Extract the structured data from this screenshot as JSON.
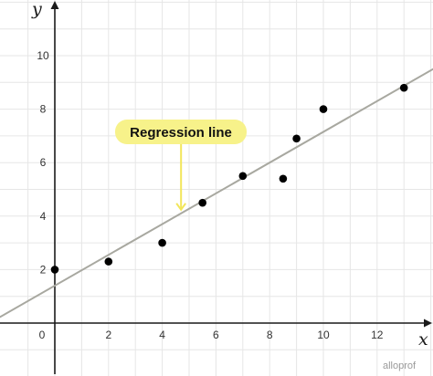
{
  "chart_data": {
    "type": "scatter",
    "title": "",
    "xlabel": "x",
    "ylabel": "y",
    "xlim": [
      -2,
      14
    ],
    "ylim": [
      -0.3,
      11.8
    ],
    "x_ticks": [
      0,
      2,
      4,
      6,
      8,
      10,
      12
    ],
    "y_ticks": [
      2,
      4,
      6,
      8,
      10
    ],
    "grid": true,
    "points": [
      {
        "x": 0,
        "y": 2
      },
      {
        "x": 2,
        "y": 2.3
      },
      {
        "x": 4,
        "y": 3
      },
      {
        "x": 5.5,
        "y": 4.5
      },
      {
        "x": 7,
        "y": 5.5
      },
      {
        "x": 8.5,
        "y": 5.4
      },
      {
        "x": 9,
        "y": 6.9
      },
      {
        "x": 10,
        "y": 8
      },
      {
        "x": 13,
        "y": 8.8
      }
    ],
    "regression_line": {
      "slope": 0.575,
      "intercept": 1.4
    },
    "annotation": {
      "label": "Regression line",
      "target_x": 4.7,
      "color": "#f7f28a"
    }
  },
  "branding": {
    "logo_text": "alloprof"
  }
}
